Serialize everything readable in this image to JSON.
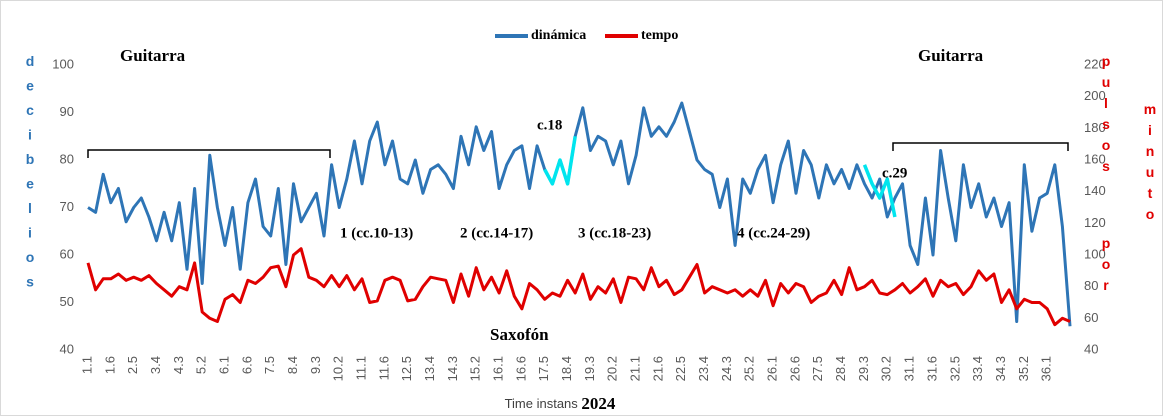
{
  "chart_data": {
    "type": "line",
    "categories": [
      "1.1",
      null,
      null,
      "1.6",
      null,
      null,
      "2.5",
      null,
      null,
      "3.4",
      null,
      null,
      "4.3",
      null,
      null,
      "5.2",
      null,
      null,
      "6.1",
      null,
      null,
      "6.6",
      null,
      null,
      "7.5",
      null,
      null,
      "8.4",
      null,
      null,
      "9.3",
      null,
      null,
      "10.2",
      null,
      null,
      "11.1",
      null,
      null,
      "11.6",
      null,
      null,
      "12.5",
      null,
      null,
      "13.4",
      null,
      null,
      "14.3",
      null,
      null,
      "15.2",
      null,
      null,
      "16.1",
      null,
      null,
      "16.6",
      null,
      null,
      "17.5",
      null,
      null,
      "18.4",
      null,
      null,
      "19.3",
      null,
      null,
      "20.2",
      null,
      null,
      "21.1",
      null,
      null,
      "21.6",
      null,
      null,
      "22.5",
      null,
      null,
      "23.4",
      null,
      null,
      "24.3",
      null,
      null,
      "25.2",
      null,
      null,
      "26.1",
      null,
      null,
      "26.6",
      null,
      null,
      "27.5",
      null,
      null,
      "28.4",
      null,
      null,
      "29.3",
      null,
      null,
      "30.2",
      null,
      null,
      "31.1",
      null,
      null,
      "31.6",
      null,
      null,
      "32.5",
      null,
      null,
      "33.4",
      null,
      null,
      "34.3",
      null,
      null,
      "35.2",
      null,
      null,
      "36.1",
      null,
      null,
      null
    ],
    "series": [
      {
        "name": "dinámica",
        "color": "#2e75b6",
        "values": [
          70,
          69,
          77,
          71,
          74,
          67,
          70,
          72,
          68,
          63,
          69,
          63,
          71,
          57,
          74,
          54,
          81,
          70,
          62,
          70,
          57,
          71,
          76,
          66,
          64,
          74,
          58,
          75,
          67,
          70,
          73,
          64,
          79,
          70,
          76,
          84,
          75,
          84,
          88,
          79,
          84,
          76,
          75,
          80,
          73,
          78,
          79,
          77,
          74,
          85,
          79,
          87,
          82,
          86,
          74,
          79,
          82,
          83,
          74,
          83,
          78,
          75,
          80,
          75,
          85,
          91,
          82,
          85,
          84,
          79,
          84,
          75,
          81,
          91,
          85,
          87,
          85,
          88,
          92,
          86,
          80,
          78,
          77,
          70,
          76,
          62,
          76,
          73,
          78,
          81,
          71,
          79,
          84,
          73,
          82,
          79,
          72,
          79,
          75,
          78,
          74,
          79,
          75,
          72,
          76,
          68,
          72,
          75,
          62,
          58,
          72,
          60,
          82,
          72,
          63,
          79,
          70,
          75,
          68,
          72,
          66,
          71,
          46,
          79,
          65,
          72,
          73,
          79,
          66,
          45
        ]
      },
      {
        "name": "tempo",
        "color": "#e00000",
        "axis": "y2",
        "values": [
          95,
          78,
          85,
          85,
          88,
          84,
          86,
          84,
          87,
          82,
          78,
          74,
          80,
          78,
          95,
          64,
          60,
          58,
          72,
          75,
          70,
          84,
          82,
          86,
          92,
          93,
          80,
          100,
          104,
          86,
          84,
          80,
          87,
          80,
          87,
          78,
          85,
          70,
          71,
          84,
          86,
          84,
          71,
          72,
          80,
          86,
          85,
          84,
          70,
          88,
          74,
          92,
          78,
          86,
          76,
          90,
          74,
          66,
          82,
          78,
          72,
          76,
          74,
          84,
          76,
          88,
          72,
          80,
          76,
          85,
          70,
          86,
          85,
          78,
          92,
          80,
          84,
          75,
          78,
          86,
          94,
          76,
          80,
          78,
          76,
          78,
          74,
          78,
          74,
          84,
          68,
          82,
          76,
          82,
          80,
          70,
          74,
          76,
          84,
          75,
          92,
          78,
          80,
          84,
          76,
          75,
          78,
          82,
          76,
          80,
          85,
          74,
          84,
          80,
          82,
          75,
          80,
          90,
          84,
          88,
          70,
          78,
          66,
          72,
          70,
          70,
          66,
          56,
          60,
          58
        ]
      },
      {
        "color": "#00e5ee",
        "values": [
          null,
          null,
          null,
          null,
          null,
          null,
          null,
          null,
          null,
          null,
          null,
          null,
          null,
          null,
          null,
          null,
          null,
          null,
          null,
          null,
          null,
          null,
          null,
          null,
          null,
          null,
          null,
          null,
          null,
          null,
          null,
          null,
          null,
          null,
          null,
          null,
          null,
          null,
          null,
          null,
          null,
          null,
          null,
          null,
          null,
          null,
          null,
          null,
          null,
          null,
          null,
          null,
          null,
          null,
          null,
          null,
          null,
          null,
          null,
          null,
          78,
          75,
          80,
          75,
          85,
          null,
          null,
          null,
          null,
          null,
          null,
          null,
          null,
          null,
          null,
          null,
          null,
          null,
          null,
          null,
          null,
          null,
          null,
          null,
          null,
          null,
          null,
          null,
          null,
          null,
          null,
          null,
          null,
          null,
          null,
          null,
          null,
          null,
          null,
          null,
          null,
          null,
          79,
          75,
          72,
          76,
          68,
          null,
          null,
          null,
          null,
          null,
          null,
          null,
          null,
          null,
          null,
          null,
          null,
          null,
          null,
          null,
          null,
          null,
          null,
          null,
          null,
          null,
          null,
          null
        ]
      }
    ],
    "ylim": [
      40,
      100
    ],
    "yticks": [
      40,
      50,
      60,
      70,
      80,
      90,
      100
    ],
    "y2lim": [
      40,
      220
    ],
    "y2ticks": [
      40,
      60,
      80,
      100,
      120,
      140,
      160,
      180,
      200,
      220
    ],
    "ylabel": "decibelios",
    "y2label": [
      "pulsos",
      "por",
      "minuto"
    ],
    "xlabel": [
      "Time instans",
      "2024"
    ],
    "annotations": [
      "Guitarra",
      "Guitarra",
      "Saxofón",
      "c.18",
      "c.29",
      "1 (cc.10-13)",
      "2 (cc.14-17)",
      "3 (cc.18-23)",
      "4 (cc.24-29)"
    ],
    "grid": false
  }
}
